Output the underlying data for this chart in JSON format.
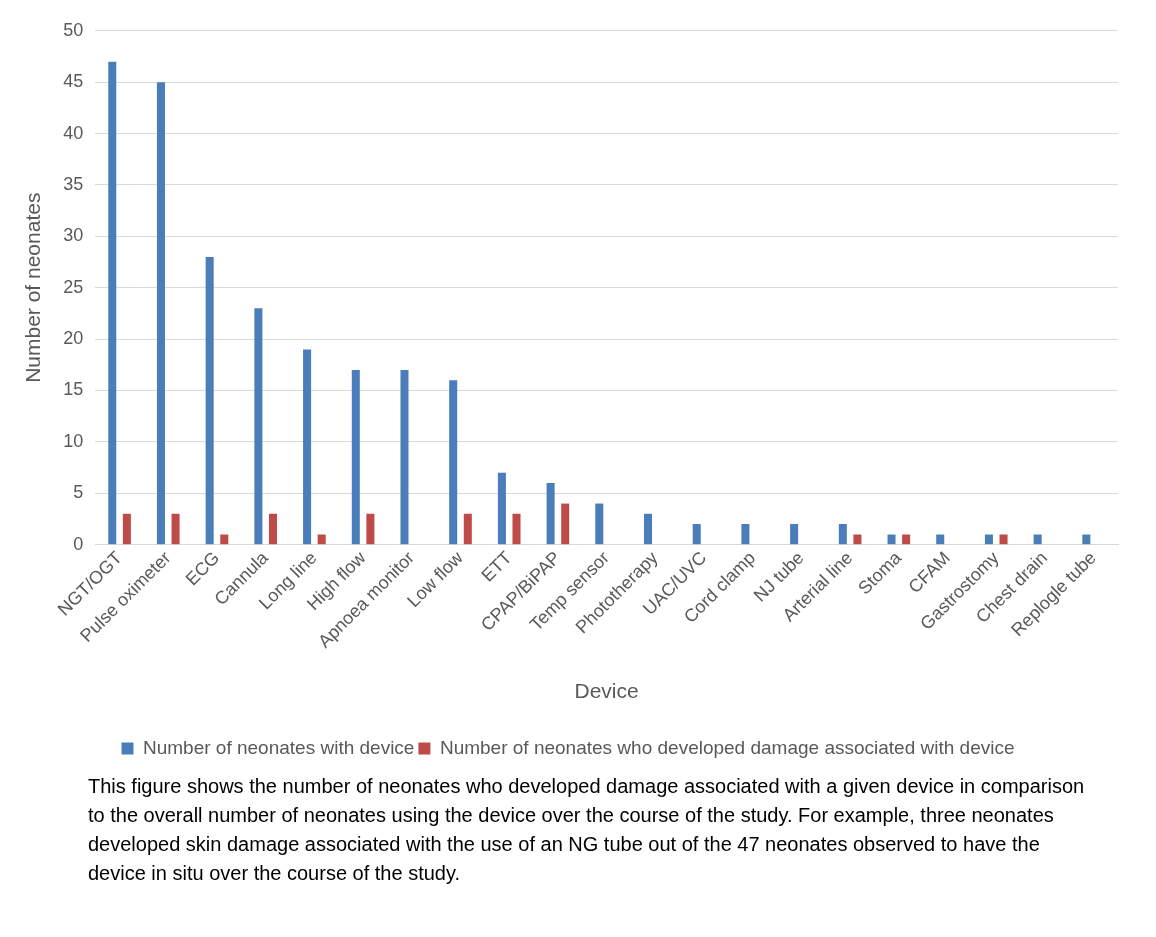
{
  "chart_data": {
    "type": "bar",
    "xlabel": "Device",
    "ylabel": "Number of neonates",
    "categories": [
      "NGT/OGT",
      "Pulse oximeter",
      "ECG",
      "Cannula",
      "Long line",
      "High flow",
      "Apnoea monitor",
      "Low flow",
      "ETT",
      "CPAP/BiPAP",
      "Temp sensor",
      "Phototherapy",
      "UAC/UVC",
      "Cord clamp",
      "NJ tube",
      "Arterial line",
      "Stoma",
      "CFAM",
      "Gastrostomy",
      "Chest drain",
      "Replogle tube"
    ],
    "series": [
      {
        "name": "Number of neonates with device",
        "color": "#4a7ebb",
        "values": [
          47,
          45,
          28,
          23,
          19,
          17,
          17,
          16,
          7,
          6,
          4,
          3,
          2,
          2,
          2,
          2,
          1,
          1,
          1,
          1,
          1
        ]
      },
      {
        "name": "Number of neonates who developed damage associated with device",
        "color": "#be4b48",
        "values": [
          3,
          3,
          1,
          3,
          1,
          3,
          0,
          3,
          3,
          4,
          0,
          0,
          0,
          0,
          0,
          1,
          1,
          0,
          1,
          0,
          0
        ]
      }
    ],
    "ylim": [
      0,
      50
    ],
    "yticks": [
      0,
      5,
      10,
      15,
      20,
      25,
      30,
      35,
      40,
      45,
      50
    ],
    "grid": "y",
    "legend": "bottom",
    "annotations": [
      "This figure shows the number of neonates who developed damage associated with a given device in comparison to the overall number of neonates using the device over the course of the study. For example, three neonates developed skin damage associated with the use of an NG tube out of the 47 neonates observed to have the device in situ over the course of the study."
    ]
  }
}
